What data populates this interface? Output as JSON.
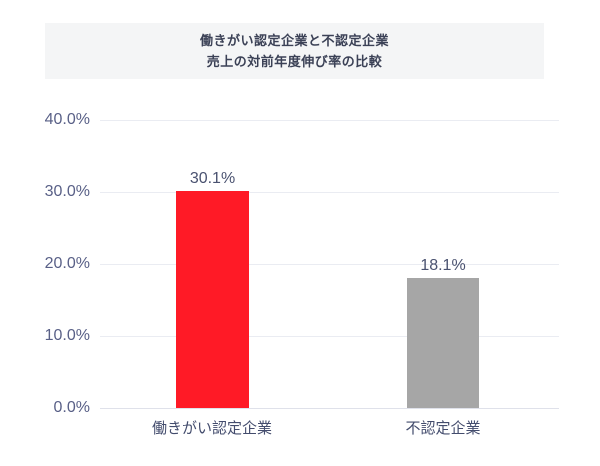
{
  "header": {
    "title_line1": "働きがい認定企業と不認定企業",
    "title_line2": "売上の対前年度伸び率の比較",
    "background": "#f4f5f6"
  },
  "chart_data": {
    "type": "bar",
    "title": "働きがい認定企業と不認定企業 売上の対前年度伸び率の比較",
    "categories": [
      "働きがい認定企業",
      "不認定企業"
    ],
    "values": [
      30.1,
      18.1
    ],
    "value_labels": [
      "30.1%",
      "18.1%"
    ],
    "bar_colors": [
      "#ff1a26",
      "#a6a6a6"
    ],
    "xlabel": "",
    "ylabel": "",
    "ylim": [
      0,
      40
    ],
    "ytick_values": [
      40,
      30,
      20,
      10,
      0
    ],
    "ytick_labels": [
      "40.0%",
      "30.0%",
      "20.0%",
      "10.0%",
      "0.0%"
    ],
    "grid": true,
    "gridline_color": "#eaecf2",
    "legend": false,
    "text_color": "#4a5270",
    "background": "#ffffff"
  }
}
